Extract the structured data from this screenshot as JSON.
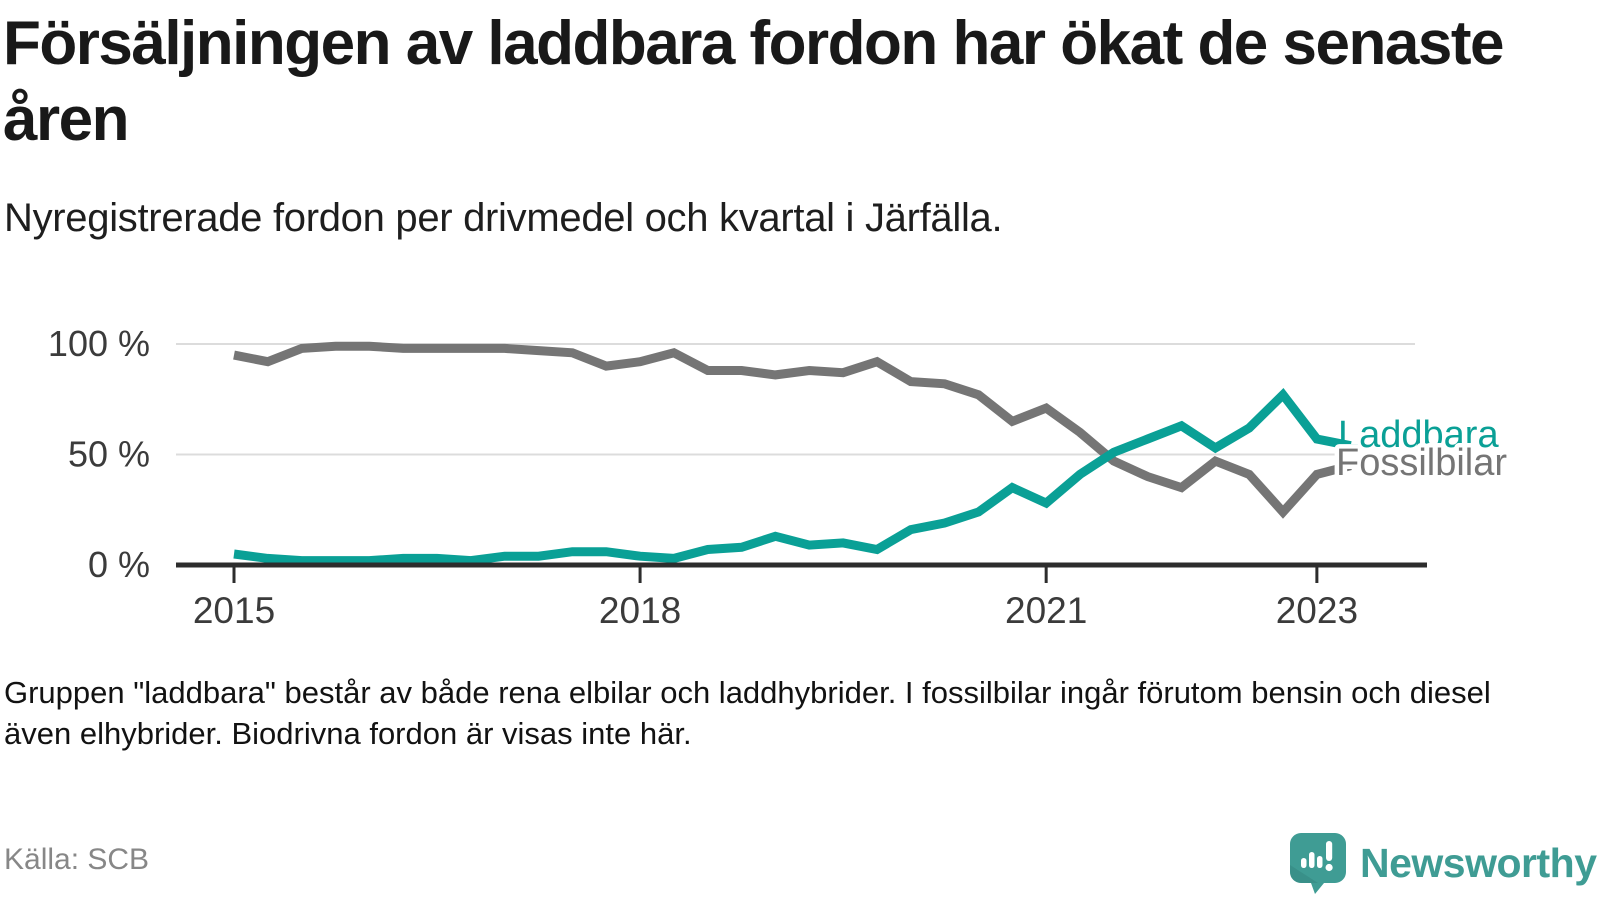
{
  "header": {
    "title": "Försäljningen av laddbara fordon har ökat de senaste åren",
    "subtitle": "Nyregistrerade fordon per drivmedel och kvartal i Järfälla."
  },
  "chart_data": {
    "type": "line",
    "unit": "percent",
    "frequency": "quarterly",
    "x_start": "2015 Q1",
    "x_end": "2023 Q2",
    "ylim": [
      0,
      100
    ],
    "grid": "horizontal-only",
    "y_ticks": [
      {
        "label": "100 %",
        "value": 100
      },
      {
        "label": "50 %",
        "value": 50
      },
      {
        "label": "0 %",
        "value": 0
      }
    ],
    "x_ticks": [
      {
        "label": "2015",
        "quarter_index": 0
      },
      {
        "label": "2018",
        "quarter_index": 12
      },
      {
        "label": "2021",
        "quarter_index": 24
      },
      {
        "label": "2023",
        "quarter_index": 32
      }
    ],
    "series": [
      {
        "name": "Laddbara",
        "color": "#0aa096",
        "values": [
          5,
          3,
          2,
          2,
          2,
          3,
          3,
          2,
          4,
          4,
          6,
          6,
          4,
          3,
          7,
          8,
          13,
          9,
          10,
          7,
          16,
          19,
          24,
          35,
          28,
          41,
          51,
          57,
          63,
          53,
          62,
          77,
          57,
          54
        ]
      },
      {
        "name": "Fossilbilar",
        "color": "#757575",
        "values": [
          95,
          92,
          98,
          99,
          99,
          98,
          98,
          98,
          98,
          97,
          96,
          90,
          92,
          96,
          88,
          88,
          86,
          88,
          87,
          92,
          83,
          82,
          77,
          65,
          71,
          60,
          47,
          40,
          35,
          47,
          41,
          24,
          41,
          45
        ]
      }
    ],
    "legend_position": "end-of-line-labels"
  },
  "footnote": "Gruppen \"laddbara\" består av både rena elbilar och laddhybrider. I fossilbilar ingår förutom bensin och diesel även elhybrider. Biodrivna fordon är visas inte här.",
  "source": "Källa: SCB",
  "branding": {
    "logo_text": "Newsworthy",
    "logo_color": "#3f9c94"
  }
}
